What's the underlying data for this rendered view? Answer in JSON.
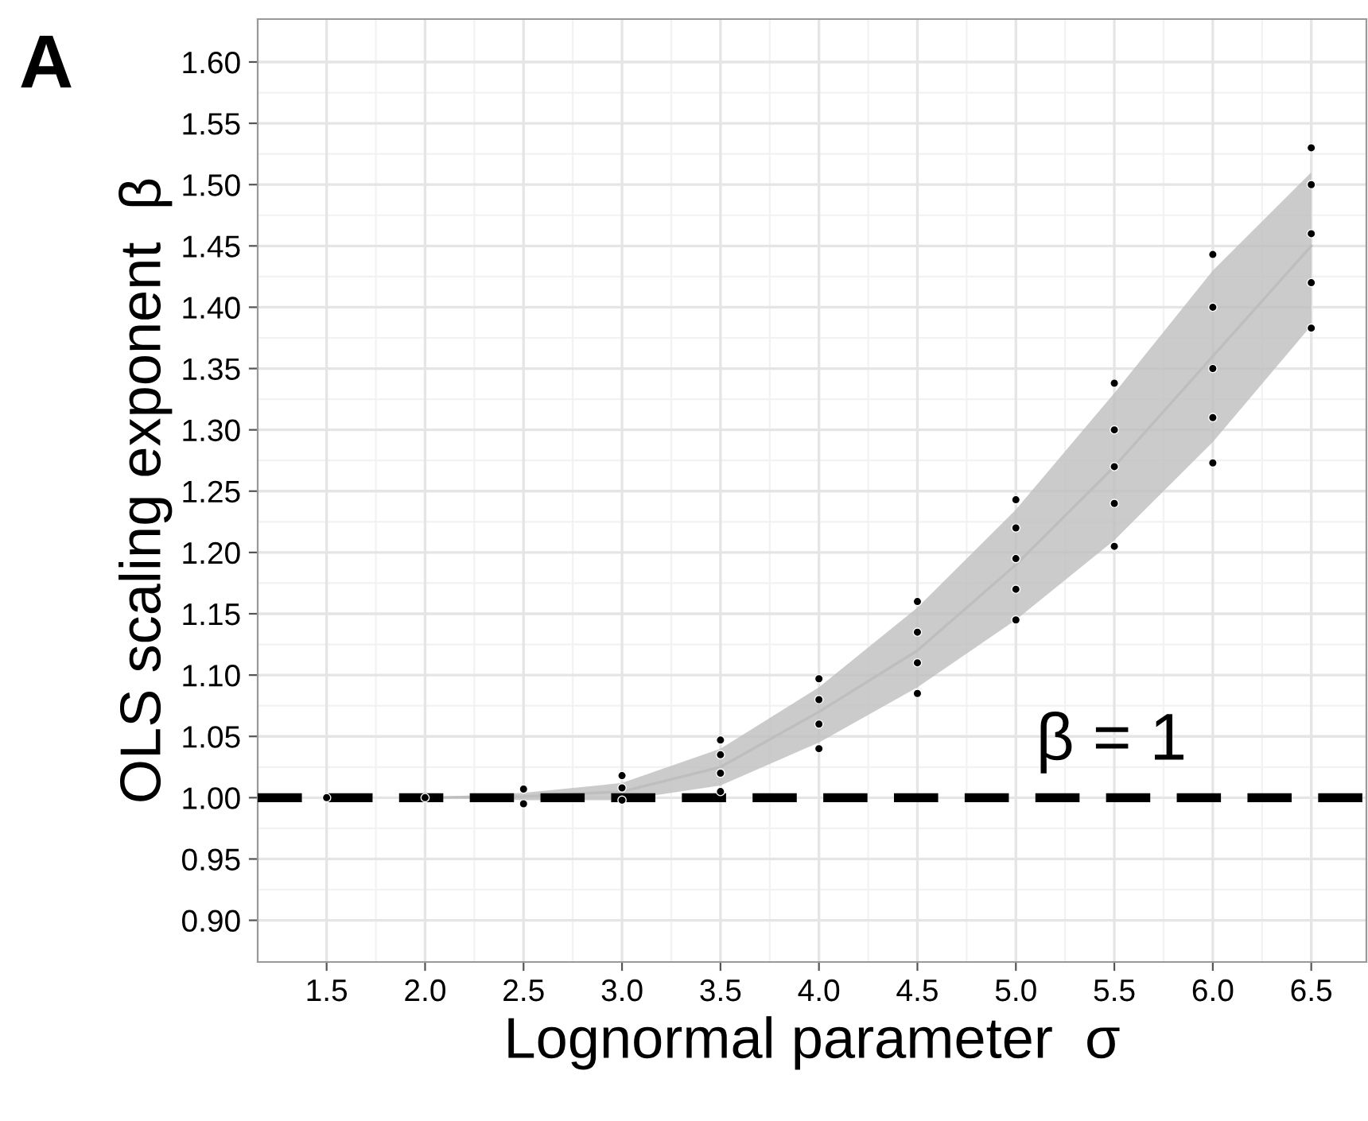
{
  "chart_data": {
    "type": "scatter",
    "xlabel": "Lognormal parameter  σ",
    "ylabel": "OLS scaling exponent  β",
    "annotations": [
      "A",
      "β = 1"
    ],
    "series": [
      {
        "type": "line",
        "color": "#bebebe",
        "x": [
          2.0,
          2.5,
          3.0,
          3.5,
          4.0,
          4.5,
          5.0,
          5.5,
          6.0,
          6.5
        ],
        "marker": "none",
        "values": [
          1.0,
          1.001,
          1.005,
          1.025,
          1.07,
          1.12,
          1.19,
          1.27,
          1.36,
          1.45
        ],
        "lower": [
          1.0,
          0.998,
          0.998,
          1.01,
          1.045,
          1.09,
          1.145,
          1.21,
          1.29,
          1.385
        ],
        "upper": [
          1.0,
          1.004,
          1.012,
          1.04,
          1.09,
          1.155,
          1.235,
          1.33,
          1.43,
          1.51
        ]
      },
      {
        "color": "#000000",
        "x": [
          1.5,
          2.0,
          2.5,
          2.5,
          3.0,
          3.0,
          3.0,
          3.5,
          3.5,
          3.5,
          3.5,
          4.0,
          4.0,
          4.0,
          4.0,
          4.5,
          4.5,
          4.5,
          4.5,
          5.0,
          5.0,
          5.0,
          5.0,
          5.0,
          5.5,
          5.5,
          5.5,
          5.5,
          5.5,
          6.0,
          6.0,
          6.0,
          6.0,
          6.0,
          6.5,
          6.5,
          6.5,
          6.5,
          6.5
        ],
        "values": [
          1.0,
          1.0,
          0.995,
          1.007,
          0.998,
          1.008,
          1.018,
          1.005,
          1.02,
          1.035,
          1.047,
          1.04,
          1.06,
          1.08,
          1.097,
          1.085,
          1.11,
          1.135,
          1.16,
          1.145,
          1.17,
          1.195,
          1.22,
          1.243,
          1.205,
          1.24,
          1.27,
          1.3,
          1.338,
          1.273,
          1.31,
          1.35,
          1.4,
          1.443,
          1.383,
          1.42,
          1.46,
          1.5,
          1.53
        ]
      }
    ],
    "ref_lines": [
      {
        "axis": "y",
        "value": 1.0,
        "color": "#000000",
        "line_style": "dashed"
      }
    ],
    "xlim": [
      1.15,
      6.78
    ],
    "ylim": [
      0.866,
      1.635
    ],
    "xticks": [
      {
        "value": 1.5,
        "label": "1.5"
      },
      {
        "value": 2.0,
        "label": "2.0"
      },
      {
        "value": 2.5,
        "label": "2.5"
      },
      {
        "value": 3.0,
        "label": "3.0"
      },
      {
        "value": 3.5,
        "label": "3.5"
      },
      {
        "value": 4.0,
        "label": "4.0"
      },
      {
        "value": 4.5,
        "label": "4.5"
      },
      {
        "value": 5.0,
        "label": "5.0"
      },
      {
        "value": 5.5,
        "label": "5.5"
      },
      {
        "value": 6.0,
        "label": "6.0"
      },
      {
        "value": 6.5,
        "label": "6.5"
      }
    ],
    "yticks": [
      {
        "value": 0.9,
        "label": "0.90"
      },
      {
        "value": 0.95,
        "label": "0.95"
      },
      {
        "value": 1.0,
        "label": "1.00"
      },
      {
        "value": 1.05,
        "label": "1.05"
      },
      {
        "value": 1.1,
        "label": "1.10"
      },
      {
        "value": 1.15,
        "label": "1.15"
      },
      {
        "value": 1.2,
        "label": "1.20"
      },
      {
        "value": 1.25,
        "label": "1.25"
      },
      {
        "value": 1.3,
        "label": "1.30"
      },
      {
        "value": 1.35,
        "label": "1.35"
      },
      {
        "value": 1.4,
        "label": "1.40"
      },
      {
        "value": 1.45,
        "label": "1.45"
      },
      {
        "value": 1.5,
        "label": "1.50"
      },
      {
        "value": 1.55,
        "label": "1.55"
      },
      {
        "value": 1.6,
        "label": "1.60"
      }
    ],
    "grid": true,
    "marker": "circle"
  }
}
